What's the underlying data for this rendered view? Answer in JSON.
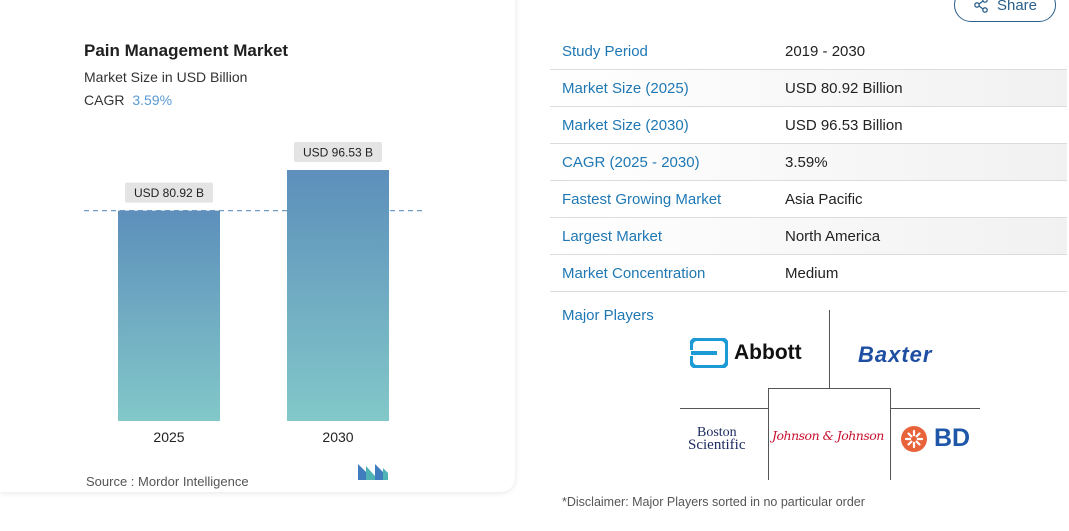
{
  "share": {
    "label": "Share"
  },
  "card": {
    "title": "Pain Management Market",
    "subtitle": "Market Size in USD Billion",
    "cagr_label": "CAGR",
    "cagr_value": "3.59%",
    "source": "Source : Mordor Intelligence"
  },
  "chart_data": {
    "type": "bar",
    "categories": [
      "2025",
      "2030"
    ],
    "values": [
      80.92,
      96.53
    ],
    "data_labels": [
      "USD 80.92 B",
      "USD 96.53 B"
    ],
    "title": "Pain Management Market",
    "subtitle": "Market Size in USD Billion",
    "xlabel": "",
    "ylabel": "",
    "ylim": [
      0,
      100
    ],
    "grid": false,
    "reference_line": {
      "value": 80.92,
      "style": "dashed"
    },
    "colors": {
      "bar_top": "#5d8fbb",
      "bar_bottom": "#82c8c9",
      "label_bg": "#e4e4e4",
      "ref_line": "#6f9ec7"
    }
  },
  "table": {
    "rows": [
      {
        "label": "Study Period",
        "value": "2019 - 2030"
      },
      {
        "label": "Market Size (2025)",
        "value": "USD 80.92 Billion"
      },
      {
        "label": "Market Size (2030)",
        "value": "USD 96.53 Billion"
      },
      {
        "label": "CAGR (2025 - 2030)",
        "value": "3.59%"
      },
      {
        "label": "Fastest Growing Market",
        "value": "Asia Pacific"
      },
      {
        "label": "Largest Market",
        "value": "North America"
      },
      {
        "label": "Market Concentration",
        "value": "Medium"
      }
    ]
  },
  "major_players": {
    "label": "Major Players",
    "logos": {
      "abbott": "Abbott",
      "baxter": "Baxter",
      "boston_line1": "Boston",
      "boston_line2": "Scientific",
      "jj": "Johnson & Johnson",
      "bd": "BD"
    },
    "disclaimer": "*Disclaimer: Major Players sorted in no particular order"
  },
  "colors": {
    "accent": "#1f78b4",
    "share_border": "#2c5f8a",
    "cagr": "#5b9bd5"
  },
  "icons": {
    "share": "share-icon",
    "source_logo": "mordor-logo-icon"
  }
}
